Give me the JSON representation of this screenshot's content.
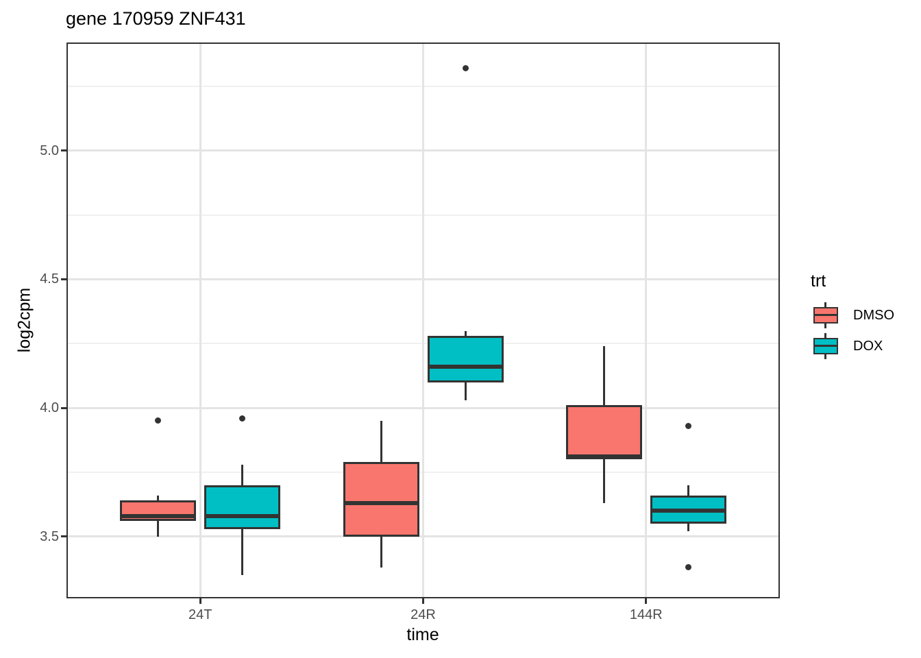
{
  "title": "gene 170959 ZNF431",
  "axes": {
    "x": {
      "title": "time"
    },
    "y": {
      "title": "log2cpm"
    }
  },
  "legend": {
    "title": "trt",
    "items": [
      {
        "label": "DMSO",
        "color": "#F8766D"
      },
      {
        "label": "DOX",
        "color": "#00BFC4"
      }
    ]
  },
  "chart_data": {
    "type": "boxplot",
    "title": "gene 170959 ZNF431",
    "xlabel": "time",
    "ylabel": "log2cpm",
    "categories": [
      "24T",
      "24R",
      "144R"
    ],
    "ylim": [
      3.26,
      5.42
    ],
    "y_major_ticks": [
      {
        "label": "3.5",
        "value": 3.5
      },
      {
        "label": "4.0",
        "value": 4.0
      },
      {
        "label": "4.5",
        "value": 4.5
      },
      {
        "label": "5.0",
        "value": 5.0
      }
    ],
    "y_minor_ticks": [
      3.75,
      4.25,
      4.75,
      5.25
    ],
    "grid": "major-and-minor-horizontal, major-vertical-at-categories",
    "legend_position": "right",
    "legend_title": "trt",
    "series": [
      {
        "name": "DMSO",
        "color": "#F8766D",
        "boxes": [
          {
            "category": "24T",
            "whisker_low": 3.5,
            "q1": 3.56,
            "median": 3.58,
            "q3": 3.64,
            "whisker_high": 3.66,
            "outliers": [
              3.95
            ]
          },
          {
            "category": "24R",
            "whisker_low": 3.38,
            "q1": 3.5,
            "median": 3.63,
            "q3": 3.79,
            "whisker_high": 3.95,
            "outliers": []
          },
          {
            "category": "144R",
            "whisker_low": 3.63,
            "q1": 3.8,
            "median": 3.81,
            "q3": 4.01,
            "whisker_high": 4.24,
            "outliers": []
          }
        ]
      },
      {
        "name": "DOX",
        "color": "#00BFC4",
        "boxes": [
          {
            "category": "24T",
            "whisker_low": 3.35,
            "q1": 3.53,
            "median": 3.58,
            "q3": 3.7,
            "whisker_high": 3.78,
            "outliers": [
              3.96
            ]
          },
          {
            "category": "24R",
            "whisker_low": 4.03,
            "q1": 4.1,
            "median": 4.16,
            "q3": 4.28,
            "whisker_high": 4.3,
            "outliers": [
              5.32
            ]
          },
          {
            "category": "144R",
            "whisker_low": 3.52,
            "q1": 3.55,
            "median": 3.6,
            "q3": 3.66,
            "whisker_high": 3.7,
            "outliers": [
              3.93,
              3.38
            ]
          }
        ]
      }
    ],
    "style": {
      "box_stroke": "#333333",
      "outlier_color": "#333333",
      "grid_major_color": "#e4e4e4",
      "grid_minor_color": "#f0f0f0",
      "panel_border_color": "#333333",
      "tick_label_color": "#4d4d4d"
    }
  }
}
